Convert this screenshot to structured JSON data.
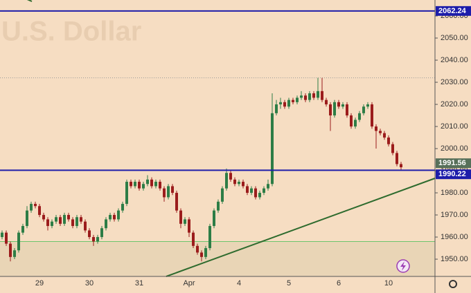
{
  "chart_data": {
    "type": "candlestick",
    "watermark": "U.S. Dollar",
    "categories": [
      null,
      null,
      null,
      null,
      null,
      null,
      null,
      null,
      null,
      "29",
      null,
      null,
      null,
      null,
      null,
      null,
      null,
      null,
      null,
      null,
      null,
      "30",
      null,
      null,
      null,
      null,
      null,
      null,
      null,
      null,
      null,
      null,
      null,
      "31",
      null,
      null,
      null,
      null,
      null,
      null,
      null,
      null,
      null,
      null,
      null,
      "Apr",
      null,
      null,
      null,
      null,
      null,
      null,
      null,
      null,
      null,
      null,
      null,
      "4",
      null,
      null,
      null,
      null,
      null,
      null,
      null,
      null,
      null,
      null,
      null,
      "5",
      null,
      null,
      null,
      null,
      null,
      null,
      null,
      null,
      null,
      null,
      null,
      "6",
      null,
      null,
      null,
      null,
      null,
      null,
      null,
      null,
      null,
      null,
      null,
      "10",
      null,
      null,
      null
    ],
    "candles": {
      "open": [
        1960,
        1962,
        1957,
        1951,
        1954,
        1962,
        1965,
        1972,
        1975,
        1974,
        1970,
        1968,
        1965,
        1967,
        1969,
        1966,
        1970,
        1968,
        1965,
        1969,
        1967,
        1963,
        1960,
        1958,
        1960,
        1964,
        1968,
        1970,
        1968,
        1972,
        1975,
        1985,
        1983,
        1985,
        1982,
        1984,
        1986,
        1983,
        1985,
        1982,
        1978,
        1983,
        1980,
        1972,
        1966,
        1968,
        1962,
        1956,
        1953,
        1951,
        1955,
        1965,
        1972,
        1976,
        1982,
        1989,
        1986,
        1984,
        1985,
        1983,
        1980,
        1982,
        1978,
        1980,
        1982,
        1984,
        2016,
        2020,
        2021,
        2019,
        2022,
        2021,
        2023,
        2024,
        2022,
        2025,
        2023,
        2026,
        2022,
        2020,
        2015,
        2021,
        2019,
        2020,
        2015,
        2010,
        2013,
        2016,
        2019,
        2020,
        2010,
        2008,
        2007,
        2005,
        2002,
        1998,
        1993
      ],
      "high": [
        1963,
        1963,
        1958,
        1955,
        1963,
        1966,
        1974,
        1976,
        1976,
        1975,
        1971,
        1969,
        1968,
        1970,
        1970,
        1971,
        1971,
        1969,
        1970,
        1970,
        1968,
        1964,
        1961,
        1961,
        1965,
        1969,
        1971,
        1971,
        1973,
        1976,
        1986,
        1986,
        1986,
        1986,
        1985,
        1988,
        1987,
        1986,
        1986,
        1983,
        1984,
        1984,
        1981,
        1973,
        1969,
        1969,
        1963,
        1957,
        1954,
        1956,
        1966,
        1973,
        1977,
        1983,
        1991,
        1990,
        1987,
        1986,
        1986,
        1984,
        1983,
        1983,
        1981,
        1983,
        1986,
        2025,
        2022,
        2023,
        2022,
        2023,
        2023,
        2024,
        2026,
        2025,
        2026,
        2026,
        2032,
        2032,
        2023,
        2021,
        2022,
        2022,
        2021,
        2021,
        2016,
        2014,
        2017,
        2020,
        2021,
        2021,
        2011,
        2009,
        2008,
        2006,
        2003,
        1999,
        1994
      ],
      "low": [
        1959,
        1956,
        1949,
        1950,
        1953,
        1961,
        1964,
        1971,
        1973,
        1969,
        1967,
        1963,
        1964,
        1966,
        1965,
        1965,
        1967,
        1964,
        1964,
        1966,
        1962,
        1959,
        1956,
        1957,
        1959,
        1963,
        1967,
        1967,
        1967,
        1971,
        1974,
        1982,
        1982,
        1981,
        1981,
        1983,
        1982,
        1982,
        1981,
        1976,
        1977,
        1979,
        1971,
        1964,
        1965,
        1960,
        1955,
        1952,
        1949,
        1950,
        1954,
        1964,
        1971,
        1975,
        1981,
        1985,
        1983,
        1983,
        1982,
        1979,
        1979,
        1977,
        1977,
        1979,
        1981,
        1983,
        2015,
        2018,
        2018,
        2018,
        2020,
        2020,
        2022,
        2021,
        2021,
        2022,
        2022,
        2021,
        2019,
        2008,
        2014,
        2018,
        2018,
        2014,
        2009,
        2009,
        2012,
        2015,
        2018,
        2009,
        2000,
        2006,
        2004,
        2001,
        1997,
        1992,
        1990
      ],
      "close": [
        1962,
        1957,
        1951,
        1954,
        1962,
        1965,
        1972,
        1975,
        1974,
        1970,
        1968,
        1965,
        1967,
        1969,
        1966,
        1970,
        1968,
        1965,
        1969,
        1967,
        1963,
        1960,
        1958,
        1960,
        1964,
        1968,
        1970,
        1968,
        1972,
        1975,
        1985,
        1983,
        1985,
        1982,
        1984,
        1986,
        1983,
        1985,
        1982,
        1978,
        1983,
        1980,
        1972,
        1966,
        1968,
        1962,
        1956,
        1953,
        1951,
        1955,
        1965,
        1972,
        1976,
        1982,
        1989,
        1986,
        1984,
        1985,
        1983,
        1980,
        1982,
        1978,
        1980,
        1982,
        1984,
        2016,
        2020,
        2021,
        2019,
        2022,
        2021,
        2023,
        2024,
        2022,
        2025,
        2023,
        2026,
        2022,
        2020,
        2015,
        2021,
        2019,
        2020,
        2015,
        2010,
        2013,
        2016,
        2019,
        2020,
        2010,
        2008,
        2007,
        2005,
        2002,
        1998,
        1993,
        1991.56
      ]
    },
    "up_color": "#2d7d46",
    "down_color": "#9b1c1c",
    "ylim": [
      1942.2,
      2067.2
    ],
    "yticks": [
      {
        "value": 1950,
        "label": "1950.00"
      },
      {
        "value": 1960,
        "label": "1960.00"
      },
      {
        "value": 1970,
        "label": "1970.00"
      },
      {
        "value": 1980,
        "label": "1980.00"
      },
      {
        "value": 1990,
        "label": "1990.00"
      },
      {
        "value": 2000,
        "label": "2000.00"
      },
      {
        "value": 2010,
        "label": "2010.00"
      },
      {
        "value": 2020,
        "label": "2020.00"
      },
      {
        "value": 2030,
        "label": "2030.00"
      },
      {
        "value": 2040,
        "label": "2040.00"
      },
      {
        "value": 2050,
        "label": "2050.00"
      },
      {
        "value": 2060,
        "label": "2060.00"
      }
    ],
    "grid": false,
    "hlines": [
      {
        "value": 2062.24,
        "color": "#1d1daa"
      },
      {
        "value": 1990.22,
        "color": "#1d1daa"
      }
    ],
    "support": {
      "value": 1958,
      "color": "#6cc46c"
    },
    "range_high": 2032,
    "last_price_color": "#57705a"
  }
}
